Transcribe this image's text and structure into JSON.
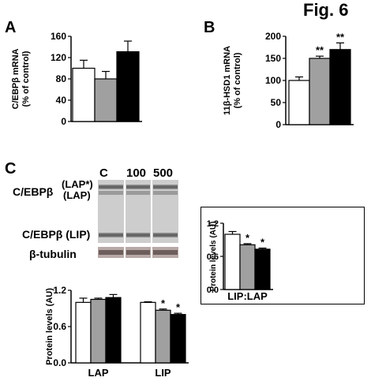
{
  "figure_label": "Fig. 6",
  "panels": {
    "a": "A",
    "b": "B",
    "c": "C"
  },
  "blot": {
    "lanes": [
      "C",
      "100",
      "500"
    ],
    "labels": {
      "cebpb_lap_prefix": "C/EBPβ",
      "lap_star": "(LAP*)",
      "lap": "(LAP)",
      "lip": "C/EBPβ (LIP)",
      "tubulin": "β-tubulin"
    }
  },
  "chart_data": [
    {
      "id": "A",
      "type": "bar",
      "ylabel": "C/EBPβ mRNA\n(% of control)",
      "ylim": [
        0,
        160
      ],
      "yticks": [
        0,
        40,
        80,
        120,
        160
      ],
      "categories": [
        ""
      ],
      "series": [
        {
          "values": [
            100
          ],
          "errors": [
            15
          ],
          "color": "#ffffff"
        },
        {
          "values": [
            80
          ],
          "errors": [
            14
          ],
          "color": "#a0a0a0"
        },
        {
          "values": [
            131
          ],
          "errors": [
            20
          ],
          "color": "#000000"
        }
      ],
      "annotations": [
        "",
        "",
        ""
      ]
    },
    {
      "id": "B",
      "type": "bar",
      "ylabel": "11β-HSD1 mRNA\n(% of control)",
      "ylim": [
        0,
        200
      ],
      "yticks": [
        0,
        50,
        100,
        150,
        200
      ],
      "categories": [
        ""
      ],
      "series": [
        {
          "values": [
            100
          ],
          "errors": [
            8
          ],
          "color": "#ffffff"
        },
        {
          "values": [
            150
          ],
          "errors": [
            5
          ],
          "color": "#a0a0a0"
        },
        {
          "values": [
            170
          ],
          "errors": [
            15
          ],
          "color": "#000000"
        }
      ],
      "annotations": [
        "",
        "**",
        "**"
      ]
    },
    {
      "id": "C-inset",
      "type": "bar",
      "ylabel": "Protein levels (AU)",
      "ylim": [
        0,
        1.2
      ],
      "yticks": [
        0.0,
        0.6,
        1.2
      ],
      "categories": [
        "LIP:LAP"
      ],
      "series": [
        {
          "values": [
            1.0
          ],
          "errors": [
            0.05
          ],
          "color": "#ffffff"
        },
        {
          "values": [
            0.81
          ],
          "errors": [
            0.02
          ],
          "color": "#a0a0a0"
        },
        {
          "values": [
            0.73
          ],
          "errors": [
            0.02
          ],
          "color": "#000000"
        }
      ],
      "annotations": [
        "",
        "*",
        "*"
      ]
    },
    {
      "id": "C-main",
      "type": "bar",
      "ylabel": "Protein levels (AU)",
      "ylim": [
        0,
        1.2
      ],
      "yticks": [
        0.0,
        0.6,
        1.2
      ],
      "categories": [
        "LAP",
        "LIP"
      ],
      "series": [
        {
          "values": [
            1.0,
            1.0
          ],
          "errors": [
            0.07,
            0.01
          ],
          "color": "#ffffff"
        },
        {
          "values": [
            1.05,
            0.87
          ],
          "errors": [
            0.02,
            0.02
          ],
          "color": "#a0a0a0"
        },
        {
          "values": [
            1.08,
            0.8
          ],
          "errors": [
            0.05,
            0.02
          ],
          "color": "#000000"
        }
      ],
      "annotations_by_category": [
        [
          "",
          "",
          ""
        ],
        [
          "",
          "*",
          "*"
        ]
      ]
    }
  ]
}
